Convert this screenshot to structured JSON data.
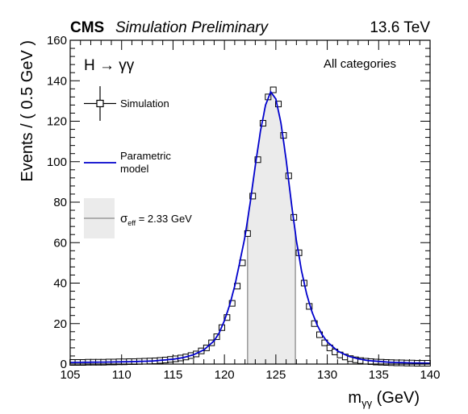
{
  "header": {
    "experiment": "CMS",
    "status": "Simulation Preliminary",
    "energy": "13.6 TeV"
  },
  "annotations": {
    "process": "H → γγ",
    "category": "All categories"
  },
  "legend": {
    "simulation": "Simulation",
    "model_line1": "Parametric",
    "model_line2": "model",
    "sigma_symbol": "σ",
    "sigma_sub": "eff",
    "sigma_value": " = 2.33 GeV"
  },
  "axes": {
    "xlabel_base": "m",
    "xlabel_sub": "γγ",
    "xlabel_unit": " (GeV)",
    "ylabel": "Events / ( 0.5 GeV )"
  },
  "colors": {
    "model": "#0000cc",
    "band": "#ebebeb",
    "band_edge": "#999999",
    "points": "#000000"
  },
  "chart_data": {
    "type": "scatter",
    "title": "",
    "xlim": [
      105,
      140
    ],
    "ylim": [
      0,
      160
    ],
    "x_ticks": [
      105,
      110,
      115,
      120,
      125,
      130,
      135,
      140
    ],
    "y_ticks": [
      0,
      20,
      40,
      60,
      80,
      100,
      120,
      140,
      160
    ],
    "sigma_eff_band": [
      122.25,
      126.9
    ],
    "series": [
      {
        "name": "Simulation",
        "x": [
          105.25,
          105.75,
          106.25,
          106.75,
          107.25,
          107.75,
          108.25,
          108.75,
          109.25,
          109.75,
          110.25,
          110.75,
          111.25,
          111.75,
          112.25,
          112.75,
          113.25,
          113.75,
          114.25,
          114.75,
          115.25,
          115.75,
          116.25,
          116.75,
          117.25,
          117.75,
          118.25,
          118.75,
          119.25,
          119.75,
          120.25,
          120.75,
          121.25,
          121.75,
          122.25,
          122.75,
          123.25,
          123.75,
          124.25,
          124.75,
          125.25,
          125.75,
          126.25,
          126.75,
          127.25,
          127.75,
          128.25,
          128.75,
          129.25,
          129.75,
          130.25,
          130.75,
          131.25,
          131.75,
          132.25,
          132.75,
          133.25,
          133.75,
          134.25,
          134.75,
          135.25,
          135.75,
          136.25,
          136.75,
          137.25,
          137.75,
          138.25,
          138.75,
          139.25,
          139.75
        ],
        "y": [
          0.8,
          0.8,
          0.8,
          0.9,
          0.9,
          0.9,
          0.9,
          1.0,
          1.0,
          1.1,
          1.1,
          1.2,
          1.2,
          1.3,
          1.4,
          1.5,
          1.6,
          1.8,
          2.0,
          2.3,
          2.6,
          3.0,
          3.5,
          4.2,
          5.0,
          6.5,
          8.0,
          10.5,
          13.5,
          18.0,
          23.0,
          30.0,
          38.5,
          50.0,
          64.5,
          83.0,
          101.0,
          119.0,
          132.0,
          135.5,
          128.5,
          113.0,
          93.0,
          72.5,
          55.0,
          40.0,
          28.5,
          20.0,
          14.5,
          10.5,
          8.0,
          6.0,
          4.5,
          3.5,
          2.7,
          2.1,
          1.7,
          1.4,
          1.2,
          1.0,
          0.9,
          0.8,
          0.7,
          0.6,
          0.6,
          0.5,
          0.5,
          0.4,
          0.4,
          0.4
        ]
      },
      {
        "name": "Parametric model",
        "x": [
          105,
          107,
          109,
          111,
          113,
          115,
          116,
          117,
          118,
          119,
          119.5,
          120,
          120.5,
          121,
          121.5,
          122,
          122.5,
          123,
          123.5,
          124,
          124.5,
          125,
          125.5,
          126,
          126.5,
          127,
          127.5,
          128,
          128.5,
          129,
          129.5,
          130,
          131,
          132,
          133,
          134,
          136,
          138,
          140
        ],
        "y": [
          0.8,
          0.9,
          1.0,
          1.2,
          1.5,
          2.4,
          3.2,
          4.6,
          7.0,
          11.5,
          15.5,
          21.5,
          29.0,
          38.5,
          50.5,
          63.0,
          79.5,
          98.0,
          115.0,
          128.0,
          134.5,
          131.0,
          119.0,
          101.0,
          80.0,
          61.0,
          46.0,
          34.5,
          26.0,
          19.5,
          14.5,
          11.0,
          6.5,
          4.0,
          2.6,
          1.7,
          0.9,
          0.6,
          0.4
        ]
      }
    ]
  }
}
